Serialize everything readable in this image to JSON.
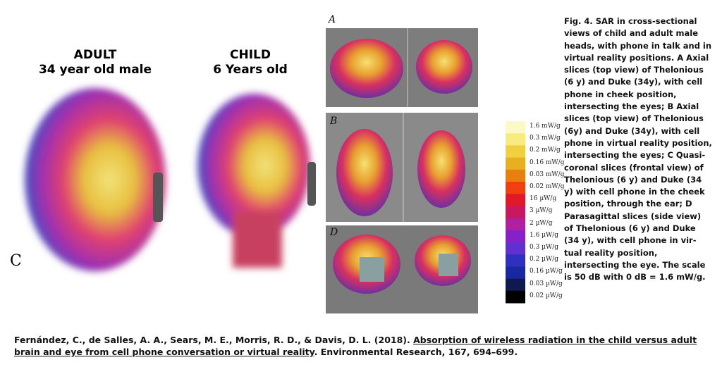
{
  "left_panel": {
    "label": "C",
    "adult_title": "ADULT",
    "adult_subtitle": "34 year old male",
    "child_title": "CHILD",
    "child_subtitle": "6 Years old"
  },
  "right_panel": {
    "panel_labels": [
      "A",
      "B",
      "D"
    ],
    "scale_labels": [
      "1.6 mW/g",
      "0.3 mW/g",
      "0.2 mW/g",
      "0.16 mW/g",
      "0.03 mW/g",
      "0.02 mW/g",
      "16 µW/g",
      "3 µW/g",
      "2 µW/g",
      "1.6 µW/g",
      "0.3 µW/g",
      "0.2 µW/g",
      "0.16 µW/g",
      "0.03 µW/g",
      "0.02 µW/g"
    ]
  },
  "caption": "Fig. 4. SAR in cross-sectional views of child and adult male heads, with phone in talk and in virtual reality positions. A Axial slices (top view) of Thelonious (6 y) and Duke (34y), with cell phone in cheek position, intersecting the eyes; B Axial slices (top view) of Thelonious (6y) and Duke (34y), with cell phone in virtual reality position, intersecting the eyes; C Quasi-coronal slices (frontal view) of Thelonious (6 y) and Duke (34 y) with cell phone in the cheek position, through the ear; D Parasagittal slices (side view) of Thelonious (6 y) and Duke (34 y), with cell phone in vir- tual reality position, intersecting the eye. The scale is 50 dB with 0 dB = 1.6 mW/g.",
  "citation": {
    "authors": "Fernández, C., de Salles, A. A., Sears, M. E., Morris, R. D., & Davis, D. L. (2018). ",
    "title": "Absorption of wireless radiation in the child versus adult brain and eye from cell phone conversation or virtual reality",
    "source": ". Environmental Research, 167, 694–699."
  }
}
